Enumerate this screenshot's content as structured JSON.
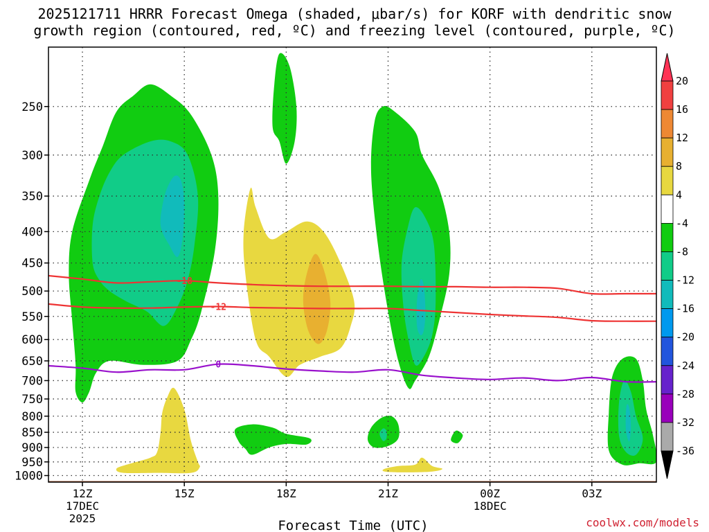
{
  "title_line1": "2025121711 HRRR Forecast Omega (shaded, μbar/s) for KORF with dendritic snow",
  "title_line2": "growth region (contoured, red, ºC) and freezing level (contoured, purple, ºC)",
  "credit": "coolwx.com/models",
  "chart_data": {
    "type": "contour",
    "title": "2025121711 HRRR Forecast Omega (shaded, μbar/s) for KORF with dendritic snow growth region (contoured, red, ºC) and freezing level (contoured, purple, ºC)",
    "xlabel": "Forecast Time (UTC)",
    "ylabel": "",
    "x_domain_hours_from_12Z": [
      -1.0,
      16.9
    ],
    "y_scale": "log-pressure (hPa), inverted",
    "ylim": [
      1025,
      200
    ],
    "x_ticks": [
      {
        "hour": 0,
        "lines": [
          "12Z",
          "17DEC",
          "2025"
        ]
      },
      {
        "hour": 3,
        "lines": [
          "15Z"
        ]
      },
      {
        "hour": 6,
        "lines": [
          "18Z"
        ]
      },
      {
        "hour": 9,
        "lines": [
          "21Z"
        ]
      },
      {
        "hour": 12,
        "lines": [
          "00Z",
          "18DEC"
        ]
      },
      {
        "hour": 15,
        "lines": [
          "03Z"
        ]
      }
    ],
    "y_ticks": [
      250,
      300,
      350,
      400,
      450,
      500,
      550,
      600,
      650,
      700,
      750,
      800,
      850,
      900,
      950,
      1000
    ],
    "grid": true,
    "surface_color": "#a0522d",
    "colorbar": {
      "levels": [
        20,
        16,
        12,
        8,
        4,
        -4,
        -8,
        -12,
        -16,
        -20,
        -24,
        -28,
        -32,
        -36
      ],
      "colors": [
        "#ff3355",
        "#f04040",
        "#ee8833",
        "#e8b030",
        "#e8d840",
        "#ffffff",
        "#11cc11",
        "#11cc88",
        "#11bbbb",
        "#0099ee",
        "#2255dd",
        "#6622cc",
        "#9900bb",
        "#aaaaaa",
        "#000000"
      ]
    },
    "omega_regions": [
      {
        "level": -4,
        "color": "#11cc11",
        "points": [
          [
            -0.2,
            660
          ],
          [
            -0.3,
            560
          ],
          [
            -0.4,
            470
          ],
          [
            -0.3,
            400
          ],
          [
            0.2,
            330
          ],
          [
            0.6,
            290
          ],
          [
            1.0,
            255
          ],
          [
            1.5,
            240
          ],
          [
            2.0,
            230
          ],
          [
            2.6,
            240
          ],
          [
            3.2,
            258
          ],
          [
            3.8,
            300
          ],
          [
            4.0,
            350
          ],
          [
            3.9,
            430
          ],
          [
            3.5,
            540
          ],
          [
            3.2,
            600
          ],
          [
            2.8,
            650
          ],
          [
            1.8,
            660
          ],
          [
            0.8,
            650
          ],
          [
            0.4,
            680
          ],
          [
            0.2,
            730
          ],
          [
            0.0,
            760
          ],
          [
            -0.2,
            730
          ]
        ]
      },
      {
        "level": -8,
        "color": "#11cc88",
        "points": [
          [
            0.3,
            450
          ],
          [
            0.3,
            390
          ],
          [
            0.5,
            350
          ],
          [
            0.8,
            320
          ],
          [
            1.2,
            300
          ],
          [
            2.0,
            285
          ],
          [
            2.6,
            285
          ],
          [
            3.1,
            300
          ],
          [
            3.4,
            350
          ],
          [
            3.3,
            420
          ],
          [
            3.1,
            480
          ],
          [
            2.8,
            530
          ],
          [
            2.4,
            570
          ],
          [
            1.9,
            540
          ],
          [
            1.3,
            520
          ],
          [
            0.8,
            500
          ],
          [
            0.5,
            480
          ]
        ]
      },
      {
        "level": -12,
        "color": "#11bbbb",
        "points": [
          [
            2.3,
            380
          ],
          [
            2.45,
            345
          ],
          [
            2.7,
            325
          ],
          [
            2.9,
            330
          ],
          [
            3.0,
            360
          ],
          [
            2.95,
            410
          ],
          [
            2.8,
            440
          ],
          [
            2.55,
            420
          ],
          [
            2.35,
            400
          ]
        ]
      },
      {
        "level": -4,
        "color": "#11cc11",
        "points": [
          [
            5.6,
            270
          ],
          [
            5.65,
            230
          ],
          [
            5.8,
            205
          ],
          [
            6.1,
            215
          ],
          [
            6.3,
            250
          ],
          [
            6.25,
            285
          ],
          [
            6.0,
            310
          ],
          [
            5.8,
            285
          ]
        ]
      },
      {
        "level": -4,
        "color": "#11cc11",
        "points": [
          [
            8.6,
            265
          ],
          [
            8.85,
            250
          ],
          [
            9.2,
            255
          ],
          [
            9.8,
            275
          ],
          [
            10.0,
            300
          ],
          [
            10.5,
            340
          ],
          [
            10.8,
            400
          ],
          [
            10.8,
            470
          ],
          [
            10.5,
            560
          ],
          [
            10.2,
            640
          ],
          [
            9.8,
            700
          ],
          [
            9.6,
            720
          ],
          [
            9.3,
            650
          ],
          [
            9.0,
            540
          ],
          [
            8.7,
            420
          ],
          [
            8.5,
            320
          ]
        ]
      },
      {
        "level": -8,
        "color": "#11cc88",
        "points": [
          [
            9.4,
            450
          ],
          [
            9.6,
            390
          ],
          [
            9.8,
            365
          ],
          [
            10.1,
            380
          ],
          [
            10.35,
            420
          ],
          [
            10.4,
            520
          ],
          [
            10.3,
            590
          ],
          [
            10.05,
            640
          ],
          [
            9.8,
            660
          ],
          [
            9.6,
            600
          ],
          [
            9.45,
            530
          ]
        ]
      },
      {
        "level": -12,
        "color": "#11bbbb",
        "points": [
          [
            9.85,
            520
          ],
          [
            9.95,
            480
          ],
          [
            10.05,
            490
          ],
          [
            10.1,
            540
          ],
          [
            10.05,
            580
          ],
          [
            9.95,
            590
          ],
          [
            9.85,
            570
          ]
        ]
      },
      {
        "level": -4,
        "color": "#11cc11",
        "points": [
          [
            4.5,
            840
          ],
          [
            5.0,
            825
          ],
          [
            5.6,
            835
          ],
          [
            6.0,
            855
          ],
          [
            6.7,
            870
          ],
          [
            6.6,
            890
          ],
          [
            6.0,
            888
          ],
          [
            5.5,
            900
          ],
          [
            5.0,
            925
          ],
          [
            4.8,
            905
          ],
          [
            4.6,
            880
          ]
        ]
      },
      {
        "level": -4,
        "color": "#11cc11",
        "points": [
          [
            8.4,
            875
          ],
          [
            8.5,
            835
          ],
          [
            8.8,
            805
          ],
          [
            9.1,
            800
          ],
          [
            9.3,
            825
          ],
          [
            9.3,
            870
          ],
          [
            9.0,
            895
          ],
          [
            8.6,
            900
          ]
        ]
      },
      {
        "level": -8,
        "color": "#11cc88",
        "points": [
          [
            8.75,
            855
          ],
          [
            8.85,
            838
          ],
          [
            8.95,
            845
          ],
          [
            8.95,
            870
          ],
          [
            8.85,
            878
          ]
        ]
      },
      {
        "level": -4,
        "color": "#11cc11",
        "points": [
          [
            10.85,
            875
          ],
          [
            11.0,
            845
          ],
          [
            11.2,
            860
          ],
          [
            11.05,
            885
          ]
        ]
      },
      {
        "level": -4,
        "color": "#11cc11",
        "points": [
          [
            15.5,
            910
          ],
          [
            15.5,
            790
          ],
          [
            15.6,
            690
          ],
          [
            15.9,
            645
          ],
          [
            16.3,
            645
          ],
          [
            16.5,
            700
          ],
          [
            16.6,
            780
          ],
          [
            16.8,
            860
          ],
          [
            16.9,
            950
          ],
          [
            16.4,
            955
          ],
          [
            15.9,
            960
          ]
        ]
      },
      {
        "level": -8,
        "color": "#11cc88",
        "points": [
          [
            15.8,
            860
          ],
          [
            15.8,
            760
          ],
          [
            15.95,
            700
          ],
          [
            16.15,
            730
          ],
          [
            16.3,
            800
          ],
          [
            16.5,
            870
          ],
          [
            16.3,
            925
          ],
          [
            16.0,
            915
          ]
        ]
      },
      {
        "level": -12,
        "color": "#11bbbb",
        "points": [
          [
            16.0,
            840
          ],
          [
            16.02,
            770
          ],
          [
            16.1,
            775
          ],
          [
            16.15,
            830
          ],
          [
            16.1,
            880
          ]
        ]
      }
    ],
    "positive_regions": [
      {
        "level": 4,
        "color": "#e8d840",
        "points": [
          [
            4.8,
            470
          ],
          [
            4.75,
            400
          ],
          [
            4.95,
            340
          ],
          [
            5.1,
            365
          ],
          [
            5.5,
            410
          ],
          [
            6.0,
            400
          ],
          [
            6.6,
            385
          ],
          [
            7.1,
            400
          ],
          [
            7.6,
            450
          ],
          [
            8.0,
            520
          ],
          [
            7.9,
            570
          ],
          [
            7.6,
            620
          ],
          [
            7.0,
            640
          ],
          [
            6.4,
            660
          ],
          [
            6.0,
            690
          ],
          [
            5.5,
            640
          ],
          [
            5.1,
            600
          ]
        ]
      },
      {
        "level": 8,
        "color": "#e8b030",
        "points": [
          [
            6.5,
            520
          ],
          [
            6.6,
            470
          ],
          [
            6.85,
            435
          ],
          [
            7.1,
            460
          ],
          [
            7.3,
            520
          ],
          [
            7.2,
            580
          ],
          [
            6.95,
            610
          ],
          [
            6.65,
            580
          ]
        ]
      },
      {
        "level": 4,
        "color": "#e8d840",
        "points": [
          [
            1.0,
            975
          ],
          [
            1.3,
            960
          ],
          [
            2.0,
            935
          ],
          [
            2.2,
            915
          ],
          [
            2.3,
            850
          ],
          [
            2.35,
            790
          ],
          [
            2.5,
            745
          ],
          [
            2.7,
            720
          ],
          [
            3.0,
            780
          ],
          [
            3.2,
            880
          ],
          [
            3.4,
            950
          ],
          [
            3.45,
            970
          ],
          [
            3.2,
            990
          ],
          [
            2.2,
            990
          ],
          [
            1.2,
            990
          ]
        ]
      },
      {
        "level": 4,
        "color": "#e8d840",
        "points": [
          [
            8.9,
            975
          ],
          [
            9.3,
            965
          ],
          [
            9.8,
            960
          ],
          [
            10.0,
            935
          ],
          [
            10.3,
            965
          ],
          [
            10.6,
            975
          ],
          [
            10.3,
            985
          ],
          [
            9.5,
            988
          ],
          [
            8.9,
            985
          ]
        ]
      }
    ],
    "contours": [
      {
        "label": "-18",
        "color": "#ee3333",
        "label_hour": 3.0,
        "points": [
          [
            -1.0,
            472
          ],
          [
            0,
            478
          ],
          [
            1,
            485
          ],
          [
            2,
            483
          ],
          [
            3,
            481
          ],
          [
            4,
            485
          ],
          [
            5,
            488
          ],
          [
            6,
            490
          ],
          [
            7,
            491
          ],
          [
            8,
            491
          ],
          [
            9,
            491
          ],
          [
            10,
            492
          ],
          [
            11,
            492
          ],
          [
            12,
            493
          ],
          [
            13,
            493
          ],
          [
            14,
            495
          ],
          [
            15,
            505
          ],
          [
            16,
            505
          ],
          [
            16.9,
            505
          ]
        ]
      },
      {
        "label": "-12",
        "color": "#ee3333",
        "label_hour": 4.0,
        "points": [
          [
            -1.0,
            525
          ],
          [
            0,
            531
          ],
          [
            1,
            533
          ],
          [
            2,
            533
          ],
          [
            3,
            531
          ],
          [
            4,
            530
          ],
          [
            5,
            532
          ],
          [
            6,
            533
          ],
          [
            7,
            534
          ],
          [
            8,
            534
          ],
          [
            9,
            534
          ],
          [
            10,
            538
          ],
          [
            11,
            542
          ],
          [
            12,
            546
          ],
          [
            13,
            549
          ],
          [
            14,
            552
          ],
          [
            15,
            559
          ],
          [
            16,
            560
          ],
          [
            16.9,
            560
          ]
        ]
      },
      {
        "label": "0",
        "color": "#9911cc",
        "label_hour": 4.0,
        "points": [
          [
            -1.0,
            662
          ],
          [
            0,
            668
          ],
          [
            1,
            678
          ],
          [
            2,
            672
          ],
          [
            3,
            672
          ],
          [
            4,
            658
          ],
          [
            5,
            662
          ],
          [
            6,
            670
          ],
          [
            7,
            675
          ],
          [
            8,
            678
          ],
          [
            9,
            672
          ],
          [
            10,
            686
          ],
          [
            11,
            693
          ],
          [
            12,
            697
          ],
          [
            13,
            693
          ],
          [
            14,
            700
          ],
          [
            15,
            692
          ],
          [
            16,
            703
          ],
          [
            16.9,
            703
          ]
        ]
      }
    ]
  }
}
